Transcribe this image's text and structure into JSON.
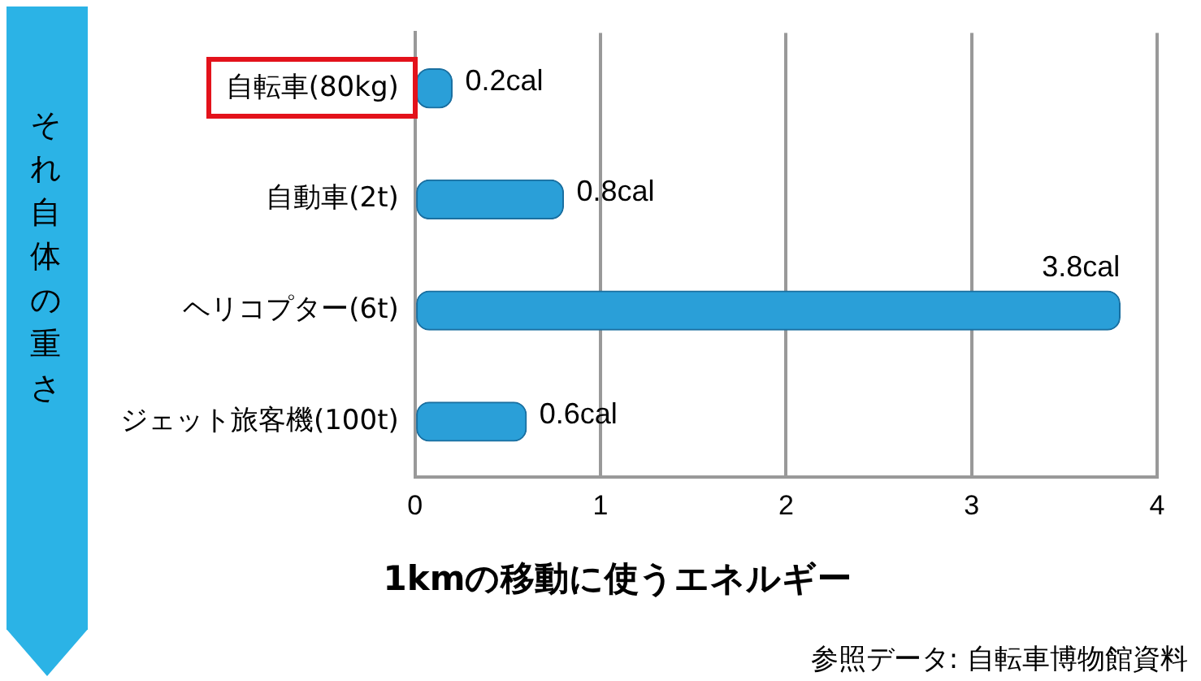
{
  "chart_data": {
    "type": "bar",
    "orientation": "horizontal",
    "categories": [
      "自転車(80kg)",
      "自動車(2t)",
      "ヘリコプター(6t)",
      "ジェット旅客機(100t)"
    ],
    "values": [
      0.2,
      0.8,
      3.8,
      0.6
    ],
    "value_labels": [
      "0.2cal",
      "0.8cal",
      "3.8cal",
      "0.6cal"
    ],
    "color": "#2a9fd8",
    "xlim": [
      0,
      4
    ],
    "xticks": [
      0,
      1,
      2,
      3,
      4
    ],
    "xlabel": "1kmの移動に使うエネルギー",
    "ylabel": "それ自体の重さ",
    "annotations": [
      "参照データ: 自転車博物館資料"
    ],
    "grid": "x",
    "legend": false
  }
}
